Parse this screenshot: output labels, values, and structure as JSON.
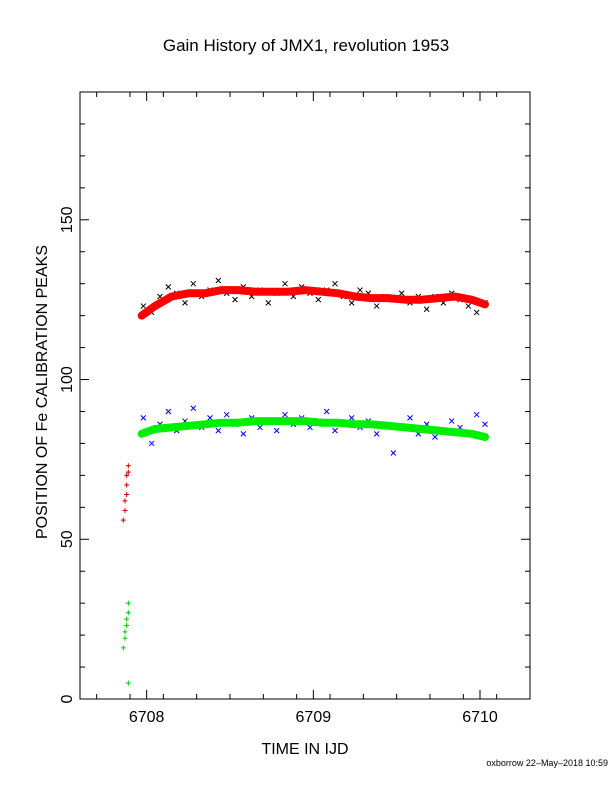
{
  "footer": {
    "stamp": "oxborrow 22–May–2018 10:59"
  },
  "chart_data": {
    "type": "scatter",
    "title": "Gain History of JMX1, revolution 1953",
    "xlabel": "TIME IN IJD",
    "ylabel": "POSITION OF Fe CALIBRATION PEAKS",
    "xlim": [
      6707.6,
      6710.3
    ],
    "ylim": [
      0,
      190
    ],
    "xticks": [
      6708,
      6709,
      6710
    ],
    "yticks": [
      0,
      50,
      100,
      150
    ],
    "grid": false,
    "series": [
      {
        "color": "#000000",
        "marker": "x",
        "x": [
          6707.98,
          6708.03,
          6708.08,
          6708.13,
          6708.18,
          6708.23,
          6708.28,
          6708.33,
          6708.38,
          6708.43,
          6708.48,
          6708.53,
          6708.58,
          6708.63,
          6708.68,
          6708.73,
          6708.78,
          6708.83,
          6708.88,
          6708.93,
          6708.98,
          6709.03,
          6709.08,
          6709.13,
          6709.18,
          6709.23,
          6709.28,
          6709.33,
          6709.38,
          6709.43,
          6709.48,
          6709.53,
          6709.58,
          6709.63,
          6709.68,
          6709.73,
          6709.78,
          6709.83,
          6709.88,
          6709.93,
          6709.98,
          6710.03
        ],
        "y": [
          123,
          121,
          126,
          129,
          127,
          124,
          130,
          126,
          128,
          131,
          127,
          125,
          129,
          126,
          128,
          124,
          127,
          130,
          126,
          129,
          127,
          125,
          128,
          130,
          126,
          124,
          128,
          127,
          123,
          126,
          125,
          127,
          124,
          126,
          122,
          126,
          124,
          127,
          125,
          123,
          121,
          124
        ]
      },
      {
        "color": "#ff0000",
        "marker": "fit",
        "x": [
          6707.97,
          6708.05,
          6708.15,
          6708.25,
          6708.35,
          6708.45,
          6708.55,
          6708.65,
          6708.75,
          6708.85,
          6708.95,
          6709.05,
          6709.15,
          6709.25,
          6709.35,
          6709.45,
          6709.55,
          6709.65,
          6709.75,
          6709.85,
          6709.95,
          6710.03
        ],
        "y": [
          120,
          123,
          126,
          127,
          127,
          128,
          128,
          127.5,
          127.5,
          127.5,
          128,
          127.5,
          127,
          126,
          125.5,
          125.5,
          125,
          125,
          125.5,
          126,
          125,
          123.5
        ]
      },
      {
        "color": "#0000ff",
        "marker": "x",
        "x": [
          6707.98,
          6708.03,
          6708.08,
          6708.13,
          6708.18,
          6708.23,
          6708.28,
          6708.33,
          6708.38,
          6708.43,
          6708.48,
          6708.53,
          6708.58,
          6708.63,
          6708.68,
          6708.73,
          6708.78,
          6708.83,
          6708.88,
          6708.93,
          6708.98,
          6709.03,
          6709.08,
          6709.13,
          6709.18,
          6709.23,
          6709.28,
          6709.33,
          6709.38,
          6709.43,
          6709.48,
          6709.53,
          6709.58,
          6709.63,
          6709.68,
          6709.73,
          6709.78,
          6709.83,
          6709.88,
          6709.93,
          6709.98,
          6710.03
        ],
        "y": [
          88,
          80,
          86,
          90,
          84,
          87,
          91,
          85,
          88,
          84,
          89,
          86,
          83,
          88,
          85,
          87,
          84,
          89,
          86,
          88,
          85,
          87,
          90,
          84,
          86,
          88,
          85,
          87,
          83,
          86,
          77,
          85,
          88,
          83,
          86,
          82,
          84,
          87,
          85,
          83,
          89,
          86
        ]
      },
      {
        "color": "#00ee00",
        "marker": "fit",
        "x": [
          6707.97,
          6708.05,
          6708.15,
          6708.25,
          6708.35,
          6708.45,
          6708.55,
          6708.65,
          6708.75,
          6708.85,
          6708.95,
          6709.05,
          6709.15,
          6709.25,
          6709.35,
          6709.45,
          6709.55,
          6709.65,
          6709.75,
          6709.85,
          6709.95,
          6710.03
        ],
        "y": [
          83,
          84.5,
          85,
          85.5,
          86,
          86.5,
          86.5,
          87,
          87,
          87,
          87,
          86.5,
          86.5,
          86,
          86,
          85.5,
          85,
          84.5,
          84,
          83.5,
          83,
          82
        ]
      },
      {
        "color": "#cc0000",
        "marker": "+",
        "x": [
          6707.86,
          6707.87,
          6707.87,
          6707.88,
          6707.88,
          6707.88,
          6707.89,
          6707.89
        ],
        "y": [
          56,
          59,
          62,
          64,
          67,
          70,
          71,
          73
        ]
      },
      {
        "color": "#00cc00",
        "marker": "+",
        "x": [
          6707.86,
          6707.87,
          6707.87,
          6707.88,
          6707.88,
          6707.89,
          6707.89,
          6707.89
        ],
        "y": [
          16,
          19,
          21,
          23,
          25,
          27,
          30,
          5
        ]
      }
    ]
  }
}
